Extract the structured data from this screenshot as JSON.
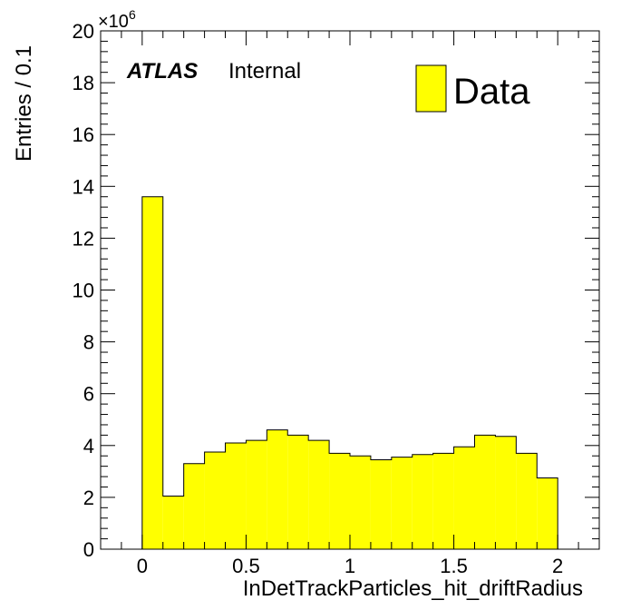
{
  "chart_data": {
    "type": "bar",
    "histogram": true,
    "xlabel": "InDetTrackParticles_hit_driftRadius",
    "ylabel": "Entries / 0.1",
    "xlim": [
      -0.2,
      2.2
    ],
    "ylim": [
      0,
      20
    ],
    "y_multiplier": "×10",
    "y_multiplier_exponent": "6",
    "x_ticks": [
      "0",
      "0.5",
      "1",
      "1.5",
      "2"
    ],
    "y_ticks": [
      "0",
      "2",
      "4",
      "6",
      "8",
      "10",
      "12",
      "14",
      "16",
      "18",
      "20"
    ],
    "bin_edges": [
      0.0,
      0.1,
      0.2,
      0.3,
      0.4,
      0.5,
      0.6,
      0.7,
      0.8,
      0.9,
      1.0,
      1.1,
      1.2,
      1.3,
      1.4,
      1.5,
      1.6,
      1.7,
      1.8,
      1.9,
      2.0
    ],
    "series": [
      {
        "name": "Data",
        "color": "#ffff00",
        "values": [
          13.6,
          2.05,
          3.3,
          3.75,
          4.1,
          4.2,
          4.6,
          4.4,
          4.2,
          3.7,
          3.6,
          3.45,
          3.55,
          3.65,
          3.7,
          3.95,
          4.4,
          4.35,
          3.7,
          2.75
        ]
      }
    ],
    "legend_position": "top-right",
    "annotation": {
      "atlas": "ATLAS",
      "label": "Internal"
    }
  }
}
